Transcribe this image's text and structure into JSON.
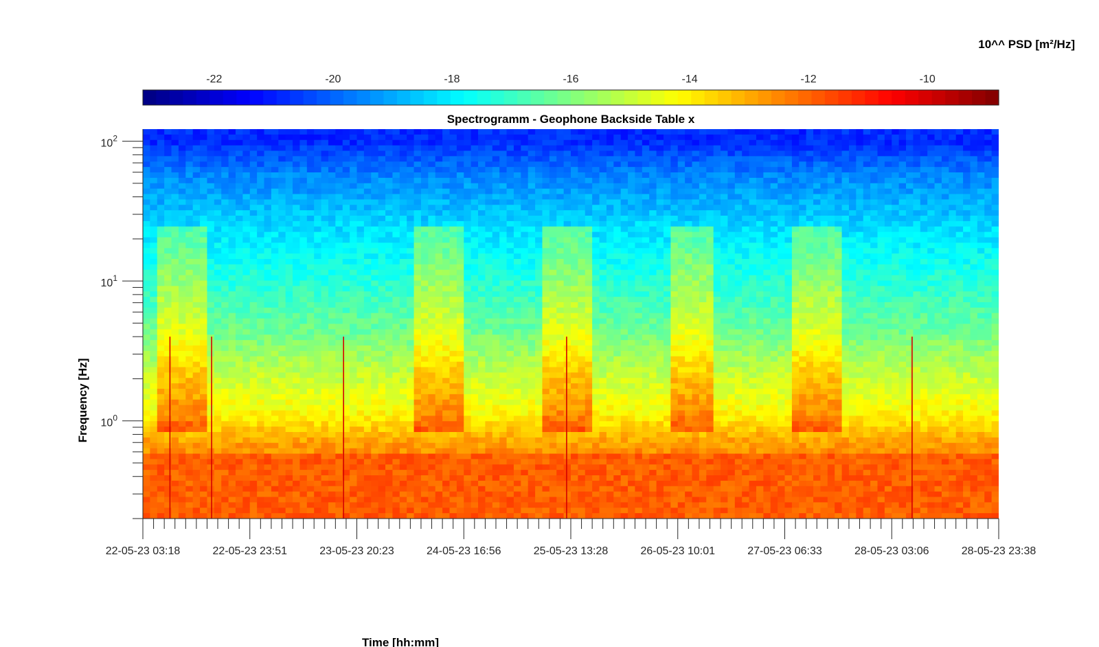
{
  "chart_data": {
    "type": "heatmap",
    "title": "Spectrogramm - Geophone Backside Table x",
    "xlabel": "Time [hh:mm]",
    "ylabel": "Frequency [Hz]",
    "colorbar_label": "10^^ PSD [m²/Hz]",
    "colormap": "jet",
    "x_scale": "time",
    "y_scale": "log",
    "xlim": [
      "22-05-23 03:18",
      "28-05-23 23:38"
    ],
    "ylim": [
      0.2,
      122
    ],
    "clim": [
      -23.2,
      -8.8
    ],
    "x_tick_labels": [
      "22-05-23 03:18",
      "22-05-23 23:51",
      "23-05-23 20:23",
      "24-05-23 16:56",
      "25-05-23 13:28",
      "26-05-23 10:01",
      "27-05-23 06:33",
      "28-05-23 03:06",
      "28-05-23 23:38"
    ],
    "y_ticks": [
      {
        "value": 1,
        "base": "10",
        "exp": "0"
      },
      {
        "value": 10,
        "base": "10",
        "exp": "1"
      },
      {
        "value": 100,
        "base": "10",
        "exp": "2"
      }
    ],
    "colorbar_ticks": [
      "-22",
      "-20",
      "-18",
      "-16",
      "-14",
      "-12",
      "-10"
    ],
    "colorbar_tick_values": [
      -22,
      -20,
      -18,
      -16,
      -14,
      -12,
      -10
    ],
    "frequency_bands": [
      {
        "f_min": 0.2,
        "f_max": 0.6,
        "log10_psd": -11.9
      },
      {
        "f_min": 0.6,
        "f_max": 0.8,
        "log10_psd": -12.8
      },
      {
        "f_min": 0.8,
        "f_max": 1.5,
        "log10_psd": -14.1
      },
      {
        "f_min": 1.5,
        "f_max": 3,
        "log10_psd": -15.0
      },
      {
        "f_min": 3,
        "f_max": 6,
        "log10_psd": -16.2
      },
      {
        "f_min": 6,
        "f_max": 15,
        "log10_psd": -17.2
      },
      {
        "f_min": 15,
        "f_max": 40,
        "log10_psd": -18.3
      },
      {
        "f_min": 40,
        "f_max": 80,
        "log10_psd": -19.5
      },
      {
        "f_min": 80,
        "f_max": 122,
        "log10_psd": -20.8
      }
    ],
    "active_periods": [
      {
        "start": "22-05-23 06:00",
        "end": "22-05-23 15:00"
      },
      {
        "start": "24-05-23 08:00",
        "end": "24-05-23 17:00"
      },
      {
        "start": "25-05-23 08:00",
        "end": "25-05-23 17:00"
      },
      {
        "start": "26-05-23 08:00",
        "end": "26-05-23 17:00"
      },
      {
        "start": "27-05-23 08:00",
        "end": "27-05-23 17:00"
      }
    ],
    "transient_events": [
      "22-05-23 08:30",
      "22-05-23 16:30",
      "23-05-23 17:50",
      "25-05-23 12:40",
      "28-05-23 07:00"
    ]
  },
  "colors": {
    "jet": [
      "#00008f",
      "#0000ff",
      "#00ffff",
      "#ffff00",
      "#ff0000",
      "#800000"
    ],
    "text": "#262626"
  }
}
